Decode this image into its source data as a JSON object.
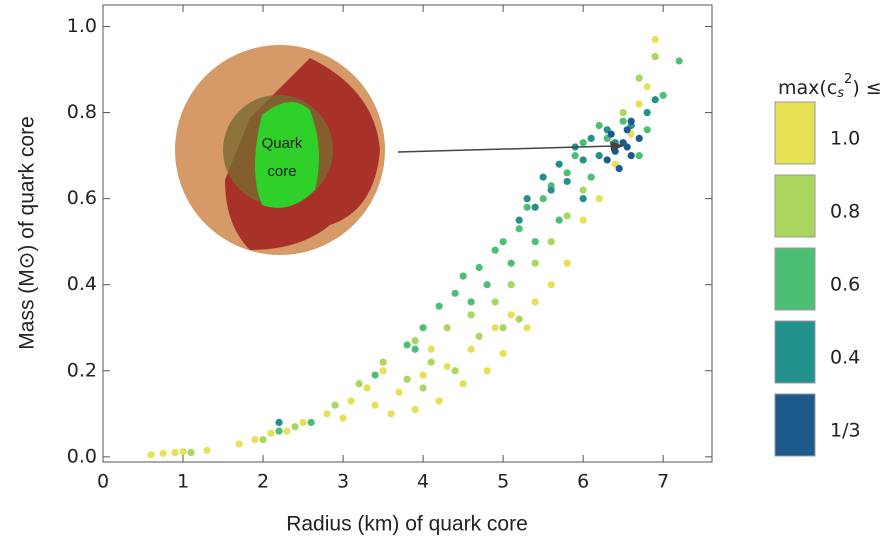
{
  "chart_data": {
    "type": "scatter",
    "xlabel": "Radius (km) of quark core",
    "ylabel": "Mass (M⊙) of quark core",
    "legend_title": {
      "prefix": "max(c",
      "sub": "s",
      "sup": "2",
      "suffix": ") ≤"
    },
    "annotation": [
      "Quark",
      "core"
    ],
    "xlim": [
      0,
      7.61
    ],
    "ylim": [
      -0.012,
      1.05
    ],
    "xticks": [
      0,
      1,
      2,
      3,
      4,
      5,
      6,
      7
    ],
    "yticks": [
      {
        "value": 0,
        "label": "0.0"
      },
      {
        "value": 0.2,
        "label": "0.2"
      },
      {
        "value": 0.4,
        "label": "0.4"
      },
      {
        "value": 0.6,
        "label": "0.6"
      },
      {
        "value": 0.8,
        "label": "0.8"
      },
      {
        "value": 1.0,
        "label": "1.0"
      }
    ],
    "series": [
      {
        "name": "1.0",
        "color": "#e6e055",
        "x": [
          0.6,
          0.75,
          0.9,
          1.0,
          1.3,
          1.7,
          1.9,
          2.1,
          2.5,
          2.8,
          3.1,
          3.3,
          3.4,
          3.6,
          3.7,
          3.9,
          4.0,
          4.2,
          4.3,
          4.5,
          4.6,
          4.8,
          4.9,
          5.0,
          5.1,
          5.3,
          5.4,
          5.6,
          5.8,
          6.0,
          6.2,
          6.4,
          6.6,
          6.7,
          6.8,
          6.9,
          3.5,
          4.1,
          2.3,
          3.0
        ],
        "values": [
          0.005,
          0.008,
          0.01,
          0.012,
          0.015,
          0.03,
          0.04,
          0.055,
          0.08,
          0.1,
          0.13,
          0.16,
          0.12,
          0.1,
          0.15,
          0.11,
          0.19,
          0.13,
          0.21,
          0.17,
          0.25,
          0.2,
          0.3,
          0.24,
          0.33,
          0.3,
          0.36,
          0.4,
          0.45,
          0.55,
          0.6,
          0.68,
          0.75,
          0.82,
          0.86,
          0.97,
          0.2,
          0.25,
          0.06,
          0.09
        ]
      },
      {
        "name": "0.8",
        "color": "#a8d65e",
        "x": [
          1.1,
          2.0,
          2.4,
          2.9,
          3.2,
          3.5,
          3.8,
          3.9,
          4.1,
          4.3,
          4.4,
          4.6,
          4.7,
          4.9,
          5.1,
          5.2,
          5.4,
          5.6,
          5.8,
          6.0,
          6.2,
          6.5,
          6.7,
          6.9,
          4.0,
          5.0
        ],
        "values": [
          0.01,
          0.04,
          0.07,
          0.12,
          0.17,
          0.22,
          0.18,
          0.27,
          0.22,
          0.3,
          0.2,
          0.33,
          0.28,
          0.36,
          0.4,
          0.32,
          0.45,
          0.5,
          0.56,
          0.62,
          0.7,
          0.8,
          0.88,
          0.93,
          0.16,
          0.3
        ]
      },
      {
        "name": "0.6",
        "color": "#4dbf74",
        "x": [
          2.2,
          2.6,
          3.4,
          3.8,
          4.0,
          4.2,
          4.4,
          4.5,
          4.7,
          4.8,
          4.9,
          5.0,
          5.1,
          5.2,
          5.3,
          5.4,
          5.5,
          5.6,
          5.7,
          5.8,
          5.9,
          6.0,
          6.1,
          6.2,
          6.3,
          6.5,
          6.7,
          6.8,
          7.0,
          7.2,
          3.9,
          4.6
        ],
        "values": [
          0.06,
          0.08,
          0.19,
          0.26,
          0.3,
          0.35,
          0.38,
          0.42,
          0.44,
          0.4,
          0.48,
          0.5,
          0.45,
          0.53,
          0.58,
          0.5,
          0.6,
          0.63,
          0.55,
          0.66,
          0.7,
          0.73,
          0.65,
          0.77,
          0.74,
          0.78,
          0.7,
          0.76,
          0.84,
          0.92,
          0.25,
          0.36
        ]
      },
      {
        "name": "0.4",
        "color": "#23918b",
        "x": [
          2.2,
          5.2,
          5.4,
          5.5,
          5.6,
          5.7,
          5.8,
          5.9,
          6.0,
          6.1,
          6.2,
          6.3,
          6.4,
          6.6,
          6.8,
          6.9,
          5.3,
          6.0
        ],
        "values": [
          0.08,
          0.55,
          0.58,
          0.65,
          0.62,
          0.68,
          0.64,
          0.72,
          0.69,
          0.74,
          0.7,
          0.76,
          0.73,
          0.77,
          0.8,
          0.83,
          0.6,
          0.6
        ]
      },
      {
        "name": "1/3",
        "color": "#1d5a8c",
        "x": [
          6.3,
          6.4,
          6.5,
          6.55,
          6.6,
          6.45,
          6.7,
          6.35,
          6.55,
          6.6
        ],
        "values": [
          0.69,
          0.71,
          0.73,
          0.76,
          0.7,
          0.67,
          0.74,
          0.75,
          0.72,
          0.78
        ]
      }
    ]
  }
}
